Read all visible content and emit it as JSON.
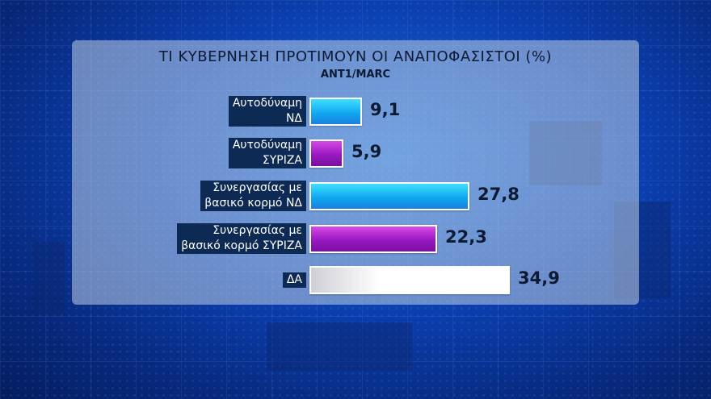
{
  "chart_data": {
    "type": "bar",
    "orientation": "horizontal",
    "title": "ΤΙ ΚΥΒΕΡΝΗΣΗ ΠΡΟΤΙΜΟΥΝ ΟΙ ΑΝΑΠΟΦΑΣΙΣΤΟΙ (%)",
    "subtitle": "ANT1/MARC",
    "categories": [
      [
        "Αυτοδύναμη",
        "ΝΔ"
      ],
      [
        "Αυτοδύναμη",
        "ΣΥΡΙΖΑ"
      ],
      [
        "Συνεργασίας με",
        "βασικό κορμό ΝΔ"
      ],
      [
        "Συνεργασίας με",
        "βασικό κορμό ΣΥΡΙΖΑ"
      ],
      [
        "ΔΑ"
      ]
    ],
    "values": [
      9.1,
      5.9,
      27.8,
      22.3,
      34.9
    ],
    "value_labels": [
      "9,1",
      "5,9",
      "27,8",
      "22,3",
      "34,9"
    ],
    "bar_colors": [
      "cyan",
      "purple",
      "cyan",
      "purple",
      "white"
    ],
    "xlim": [
      0,
      34.9
    ],
    "grid": false,
    "legend": "none"
  }
}
